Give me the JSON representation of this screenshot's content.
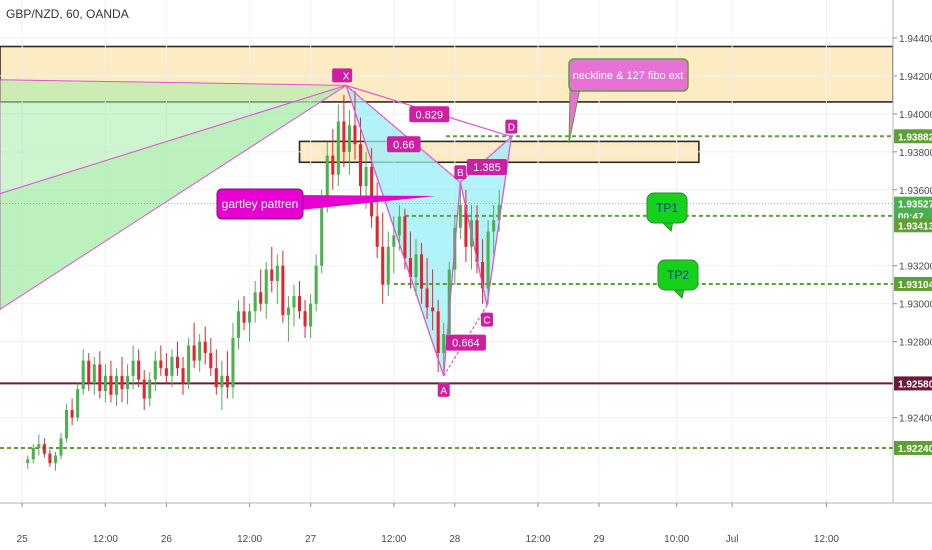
{
  "header": {
    "symbol": "GBP/NZD, 60, OANDA"
  },
  "colors": {
    "up": "#4caf50",
    "down": "#e0252e",
    "zone_fill": "#fdebc4",
    "harmonic_green": "#a6eca8",
    "harmonic_cyan": "#98eef7",
    "pattern_pink": "#e252d6",
    "point_label": "#cc1fa2",
    "level_green": "#5fa036",
    "level_maroon": "#6a1a3b",
    "tp_green": "#16d11a"
  },
  "chart_data": {
    "type": "candlestick",
    "title": "GBP/NZD, 60, OANDA",
    "ylim": [
      1.9195,
      1.946
    ],
    "y_ticks": [
      "1.94400",
      "1.94200",
      "1.94000",
      "1.93800",
      "1.93600",
      "1.93200",
      "1.93000",
      "1.92800",
      "1.92400"
    ],
    "x_ticks": [
      {
        "label": "25",
        "x": 0.2
      },
      {
        "label": "12:00",
        "x": 0.95
      },
      {
        "label": "26",
        "x": 1.5
      },
      {
        "label": "12:00",
        "x": 2.25
      },
      {
        "label": "27",
        "x": 2.8
      },
      {
        "label": "12:00",
        "x": 3.55
      },
      {
        "label": "28",
        "x": 4.1
      },
      {
        "label": "12:00",
        "x": 4.85
      },
      {
        "label": "29",
        "x": 5.4
      },
      {
        "label": "10:00",
        "x": 6.1
      },
      {
        "label": "Jul",
        "x": 6.6
      },
      {
        "label": "12:00",
        "x": 7.45
      }
    ],
    "x_range": [
      0,
      8.05
    ],
    "price_badges": [
      {
        "value": "1.93882",
        "y": 1.93882,
        "bg": "#5fa036",
        "fg": "#ffffff"
      },
      {
        "value": "1.93527",
        "y": 1.93527,
        "bg": "#4caf50",
        "fg": "#ffffff"
      },
      {
        "value": "00:47",
        "y": 1.93463,
        "bg": "#4caf50",
        "fg": "#ffffff"
      },
      {
        "value": "1.93413",
        "y": 1.93413,
        "bg": "#5fa036",
        "fg": "#ffffff"
      },
      {
        "value": "1.93104",
        "y": 1.93104,
        "bg": "#5fa036",
        "fg": "#ffffff"
      },
      {
        "value": "1.92580",
        "y": 1.9258,
        "bg": "#6a1a3b",
        "fg": "#ffffff"
      },
      {
        "value": "1.92240",
        "y": 1.9224,
        "bg": "#5fa036",
        "fg": "#ffffff"
      }
    ],
    "levels": [
      {
        "y": 1.93882,
        "x_start": 4.02,
        "color": "#5fa036",
        "style": "dashed"
      },
      {
        "y": 1.93463,
        "x_start": 3.65,
        "color": "#5fa036",
        "style": "dashed"
      },
      {
        "y": 1.93104,
        "x_start": 3.55,
        "color": "#5fa036",
        "style": "dashed"
      },
      {
        "y": 1.9224,
        "x_start": 0.0,
        "color": "#5fa036",
        "style": "dashed"
      },
      {
        "y": 1.9258,
        "x_start": 0.0,
        "color": "#6a1a3b",
        "style": "solid"
      }
    ],
    "zones": [
      {
        "y_top": 1.94355,
        "y_bottom": 1.94063,
        "x_start": 0.0,
        "x_end": 8.05
      },
      {
        "y_top": 1.93855,
        "y_bottom": 1.93745,
        "x_start": 2.7,
        "x_end": 6.3
      }
    ],
    "pattern_points": [
      {
        "label": "X",
        "x": 3.12,
        "y": 1.9415
      },
      {
        "label": "A",
        "x": 4.0,
        "y": 1.9262
      },
      {
        "label": "B",
        "x": 4.15,
        "y": 1.9364
      },
      {
        "label": "C",
        "x": 4.39,
        "y": 1.9299
      },
      {
        "label": "D",
        "x": 4.61,
        "y": 1.9388
      }
    ],
    "ratios": [
      {
        "value": "0.829",
        "x": 3.87,
        "y": 1.93998
      },
      {
        "value": "0.66",
        "x": 3.64,
        "y": 1.9384
      },
      {
        "value": "1.385",
        "x": 4.39,
        "y": 1.9372
      },
      {
        "value": "0.664",
        "x": 4.2,
        "y": 1.92795
      }
    ],
    "annotations": [
      {
        "text": "gartley pattren"
      },
      {
        "text": "neckline & 127 fibo ext"
      },
      {
        "text": "TP1"
      },
      {
        "text": "TP2"
      }
    ],
    "candles": [
      [
        0.25,
        1.9216,
        1.922,
        1.9213,
        1.9218
      ],
      [
        0.3,
        1.9218,
        1.9226,
        1.9216,
        1.9224
      ],
      [
        0.35,
        1.9224,
        1.9231,
        1.922,
        1.9226
      ],
      [
        0.4,
        1.9226,
        1.9229,
        1.9219,
        1.9221
      ],
      [
        0.45,
        1.9221,
        1.9223,
        1.9214,
        1.9216
      ],
      [
        0.5,
        1.9216,
        1.9222,
        1.9212,
        1.922
      ],
      [
        0.55,
        1.922,
        1.9232,
        1.9218,
        1.9229
      ],
      [
        0.6,
        1.9229,
        1.9247,
        1.9227,
        1.9244
      ],
      [
        0.65,
        1.9244,
        1.925,
        1.9236,
        1.924
      ],
      [
        0.7,
        1.924,
        1.9258,
        1.9238,
        1.9255
      ],
      [
        0.75,
        1.9255,
        1.9276,
        1.9252,
        1.927
      ],
      [
        0.8,
        1.927,
        1.9274,
        1.9254,
        1.9258
      ],
      [
        0.85,
        1.9258,
        1.9272,
        1.9252,
        1.9268
      ],
      [
        0.9,
        1.9268,
        1.9275,
        1.925,
        1.9254
      ],
      [
        0.95,
        1.9254,
        1.9268,
        1.9248,
        1.9262
      ],
      [
        1.0,
        1.9262,
        1.927,
        1.9248,
        1.9252
      ],
      [
        1.05,
        1.9252,
        1.9266,
        1.9246,
        1.9262
      ],
      [
        1.1,
        1.9262,
        1.9272,
        1.9248,
        1.9255
      ],
      [
        1.15,
        1.9255,
        1.9268,
        1.9247,
        1.9262
      ],
      [
        1.2,
        1.9262,
        1.9278,
        1.9255,
        1.927
      ],
      [
        1.25,
        1.927,
        1.9276,
        1.9256,
        1.926
      ],
      [
        1.3,
        1.926,
        1.9265,
        1.9244,
        1.925
      ],
      [
        1.35,
        1.925,
        1.9264,
        1.9246,
        1.926
      ],
      [
        1.4,
        1.926,
        1.9275,
        1.9254,
        1.927
      ],
      [
        1.45,
        1.927,
        1.9278,
        1.9262,
        1.9266
      ],
      [
        1.5,
        1.9266,
        1.9274,
        1.9258,
        1.9262
      ],
      [
        1.55,
        1.9262,
        1.9276,
        1.9256,
        1.9272
      ],
      [
        1.6,
        1.9272,
        1.928,
        1.9262,
        1.9266
      ],
      [
        1.65,
        1.9266,
        1.9272,
        1.9252,
        1.9258
      ],
      [
        1.7,
        1.9258,
        1.9282,
        1.9255,
        1.9278
      ],
      [
        1.75,
        1.9278,
        1.929,
        1.9266,
        1.927
      ],
      [
        1.8,
        1.927,
        1.9284,
        1.9264,
        1.928
      ],
      [
        1.85,
        1.928,
        1.9288,
        1.9268,
        1.9274
      ],
      [
        1.9,
        1.9274,
        1.9282,
        1.9262,
        1.9266
      ],
      [
        1.95,
        1.9266,
        1.9276,
        1.9252,
        1.9256
      ],
      [
        2.0,
        1.9256,
        1.927,
        1.9244,
        1.9262
      ],
      [
        2.05,
        1.9262,
        1.9275,
        1.925,
        1.9256
      ],
      [
        2.1,
        1.9256,
        1.929,
        1.925,
        1.9282
      ],
      [
        2.15,
        1.9282,
        1.9302,
        1.9276,
        1.9296
      ],
      [
        2.2,
        1.9296,
        1.9304,
        1.9286,
        1.929
      ],
      [
        2.25,
        1.929,
        1.93,
        1.928,
        1.9296
      ],
      [
        2.3,
        1.9296,
        1.9312,
        1.929,
        1.9306
      ],
      [
        2.35,
        1.9306,
        1.9318,
        1.9296,
        1.93
      ],
      [
        2.4,
        1.93,
        1.9322,
        1.9292,
        1.9318
      ],
      [
        2.45,
        1.9318,
        1.933,
        1.9306,
        1.9312
      ],
      [
        2.5,
        1.9312,
        1.9326,
        1.93,
        1.932
      ],
      [
        2.55,
        1.932,
        1.9328,
        1.929,
        1.9294
      ],
      [
        2.6,
        1.9294,
        1.9304,
        1.928,
        1.9298
      ],
      [
        2.65,
        1.9298,
        1.931,
        1.9288,
        1.9304
      ],
      [
        2.7,
        1.9304,
        1.9312,
        1.9292,
        1.9296
      ],
      [
        2.75,
        1.9296,
        1.9302,
        1.9282,
        1.9288
      ],
      [
        2.8,
        1.9288,
        1.9305,
        1.9282,
        1.93
      ],
      [
        2.85,
        1.93,
        1.9326,
        1.9296,
        1.932
      ],
      [
        2.9,
        1.932,
        1.936,
        1.9316,
        1.9354
      ],
      [
        2.95,
        1.9354,
        1.9385,
        1.9348,
        1.9378
      ],
      [
        3.0,
        1.9378,
        1.9392,
        1.936,
        1.9368
      ],
      [
        3.05,
        1.9368,
        1.9405,
        1.9362,
        1.9396
      ],
      [
        3.1,
        1.9396,
        1.941,
        1.9372,
        1.938
      ],
      [
        3.15,
        1.938,
        1.9402,
        1.9368,
        1.9394
      ],
      [
        3.2,
        1.9394,
        1.9412,
        1.9376,
        1.9384
      ],
      [
        3.25,
        1.9384,
        1.9398,
        1.9356,
        1.9362
      ],
      [
        3.3,
        1.9362,
        1.938,
        1.935,
        1.9372
      ],
      [
        3.35,
        1.9372,
        1.9382,
        1.934,
        1.9346
      ],
      [
        3.4,
        1.9346,
        1.9364,
        1.9324,
        1.933
      ],
      [
        3.45,
        1.933,
        1.9348,
        1.93,
        1.931
      ],
      [
        3.5,
        1.931,
        1.9338,
        1.9304,
        1.933
      ],
      [
        3.55,
        1.933,
        1.9346,
        1.9316,
        1.9336
      ],
      [
        3.6,
        1.9336,
        1.9352,
        1.9328,
        1.9346
      ],
      [
        3.65,
        1.9346,
        1.935,
        1.9318,
        1.9324
      ],
      [
        3.7,
        1.9324,
        1.9338,
        1.9308,
        1.9314
      ],
      [
        3.75,
        1.9314,
        1.9334,
        1.9304,
        1.9326
      ],
      [
        3.8,
        1.9326,
        1.9332,
        1.93,
        1.9308
      ],
      [
        3.85,
        1.9308,
        1.9324,
        1.9292,
        1.9298
      ],
      [
        3.9,
        1.9298,
        1.9318,
        1.9286,
        1.9296
      ],
      [
        3.95,
        1.9296,
        1.9302,
        1.9264,
        1.9274
      ],
      [
        4.0,
        1.9274,
        1.929,
        1.9262,
        1.9284
      ],
      [
        4.05,
        1.9284,
        1.9322,
        1.928,
        1.9318
      ],
      [
        4.1,
        1.9318,
        1.9346,
        1.931,
        1.934
      ],
      [
        4.15,
        1.934,
        1.9364,
        1.9334,
        1.9352
      ],
      [
        4.2,
        1.9352,
        1.936,
        1.9322,
        1.933
      ],
      [
        4.25,
        1.933,
        1.9352,
        1.9318,
        1.9344
      ],
      [
        4.3,
        1.9344,
        1.9352,
        1.9316,
        1.9322
      ],
      [
        4.35,
        1.9322,
        1.9334,
        1.93,
        1.9308
      ],
      [
        4.4,
        1.9308,
        1.9344,
        1.93,
        1.9338
      ],
      [
        4.45,
        1.9338,
        1.9352,
        1.9326,
        1.9344
      ],
      [
        4.5,
        1.9344,
        1.936,
        1.9338,
        1.9352
      ]
    ]
  }
}
